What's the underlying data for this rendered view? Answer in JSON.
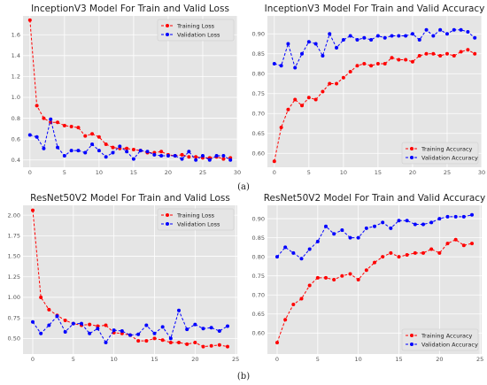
{
  "figure": {
    "captions": [
      "(a)",
      "(b)"
    ]
  },
  "chart_data": [
    {
      "type": "line",
      "title": "InceptionV3 Model For Train and Valid Loss",
      "xlim": [
        -1,
        30
      ],
      "ylim": [
        0.33,
        1.78
      ],
      "xticks": [
        0,
        5,
        10,
        15,
        20,
        25,
        30
      ],
      "yticks": [
        0.4,
        0.6,
        0.8,
        1.0,
        1.2,
        1.4,
        1.6
      ],
      "ydecimals": 1,
      "legend_position": "top-right",
      "x": [
        0,
        1,
        2,
        3,
        4,
        5,
        6,
        7,
        8,
        9,
        10,
        11,
        12,
        13,
        14,
        15,
        16,
        17,
        18,
        19,
        20,
        21,
        22,
        23,
        24,
        25,
        26,
        27,
        28,
        29
      ],
      "series": [
        {
          "name": "Training Loss",
          "color": "#ff0000",
          "style": "dashed",
          "values": [
            1.74,
            0.92,
            0.8,
            0.76,
            0.76,
            0.73,
            0.72,
            0.71,
            0.63,
            0.65,
            0.62,
            0.55,
            0.52,
            0.51,
            0.51,
            0.5,
            0.49,
            0.47,
            0.47,
            0.48,
            0.45,
            0.44,
            0.45,
            0.43,
            0.43,
            0.42,
            0.42,
            0.43,
            0.41,
            0.42
          ]
        },
        {
          "name": "Validation Loss",
          "color": "#0000ff",
          "style": "dashed",
          "values": [
            0.64,
            0.62,
            0.51,
            0.79,
            0.52,
            0.44,
            0.49,
            0.49,
            0.47,
            0.55,
            0.49,
            0.43,
            0.47,
            0.53,
            0.48,
            0.41,
            0.49,
            0.48,
            0.45,
            0.44,
            0.44,
            0.44,
            0.41,
            0.48,
            0.4,
            0.44,
            0.4,
            0.44,
            0.44,
            0.4
          ]
        }
      ]
    },
    {
      "type": "line",
      "title": "InceptionV3 Model For Train and Valid Accuracy",
      "xlim": [
        -1,
        30
      ],
      "ylim": [
        0.565,
        0.945
      ],
      "xticks": [
        0,
        5,
        10,
        15,
        20,
        25,
        30
      ],
      "yticks": [
        0.6,
        0.65,
        0.7,
        0.75,
        0.8,
        0.85,
        0.9
      ],
      "ydecimals": 2,
      "legend_position": "bottom-right",
      "x": [
        0,
        1,
        2,
        3,
        4,
        5,
        6,
        7,
        8,
        9,
        10,
        11,
        12,
        13,
        14,
        15,
        16,
        17,
        18,
        19,
        20,
        21,
        22,
        23,
        24,
        25,
        26,
        27,
        28,
        29
      ],
      "series": [
        {
          "name": "Training Accuracy",
          "color": "#ff0000",
          "style": "dashed",
          "values": [
            0.58,
            0.665,
            0.71,
            0.735,
            0.72,
            0.74,
            0.735,
            0.755,
            0.775,
            0.775,
            0.79,
            0.805,
            0.82,
            0.825,
            0.82,
            0.825,
            0.825,
            0.84,
            0.835,
            0.835,
            0.83,
            0.845,
            0.85,
            0.85,
            0.845,
            0.85,
            0.845,
            0.855,
            0.86,
            0.85
          ]
        },
        {
          "name": "Validation Accuracy",
          "color": "#0000ff",
          "style": "dashed",
          "values": [
            0.825,
            0.82,
            0.875,
            0.815,
            0.85,
            0.88,
            0.875,
            0.845,
            0.9,
            0.865,
            0.885,
            0.895,
            0.885,
            0.89,
            0.885,
            0.895,
            0.89,
            0.895,
            0.895,
            0.895,
            0.9,
            0.885,
            0.91,
            0.895,
            0.91,
            0.9,
            0.91,
            0.91,
            0.905,
            0.89
          ]
        }
      ]
    },
    {
      "type": "line",
      "title": "ResNet50V2 Model For Train and Valid Loss",
      "xlim": [
        -1.2,
        25.2
      ],
      "ylim": [
        0.31,
        2.12
      ],
      "xticks": [
        0,
        5,
        10,
        15,
        20,
        25
      ],
      "yticks": [
        0.5,
        0.75,
        1.0,
        1.25,
        1.5,
        1.75,
        2.0
      ],
      "ydecimals": 2,
      "legend_position": "top-right",
      "x": [
        0,
        1,
        2,
        3,
        4,
        5,
        6,
        7,
        8,
        9,
        10,
        11,
        12,
        13,
        14,
        15,
        16,
        17,
        18,
        19,
        20,
        21,
        22,
        23,
        24
      ],
      "series": [
        {
          "name": "Training Loss",
          "color": "#ff0000",
          "style": "dashed",
          "values": [
            2.06,
            1.0,
            0.85,
            0.78,
            0.72,
            0.68,
            0.66,
            0.67,
            0.65,
            0.66,
            0.57,
            0.56,
            0.54,
            0.47,
            0.47,
            0.5,
            0.48,
            0.45,
            0.45,
            0.43,
            0.45,
            0.4,
            0.41,
            0.42,
            0.4
          ]
        },
        {
          "name": "Validation Loss",
          "color": "#0000ff",
          "style": "dashed",
          "values": [
            0.7,
            0.56,
            0.66,
            0.77,
            0.58,
            0.68,
            0.68,
            0.56,
            0.62,
            0.45,
            0.6,
            0.59,
            0.54,
            0.55,
            0.66,
            0.56,
            0.64,
            0.5,
            0.84,
            0.61,
            0.67,
            0.62,
            0.63,
            0.59,
            0.65
          ]
        }
      ]
    },
    {
      "type": "line",
      "title": "ResNet50V2 Model For Train and Valid Accuracy",
      "xlim": [
        -1.2,
        25.2
      ],
      "ylim": [
        0.545,
        0.935
      ],
      "xticks": [
        0,
        5,
        10,
        15,
        20,
        25
      ],
      "yticks": [
        0.6,
        0.65,
        0.7,
        0.75,
        0.8,
        0.85,
        0.9
      ],
      "ydecimals": 2,
      "legend_position": "bottom-right",
      "x": [
        0,
        1,
        2,
        3,
        4,
        5,
        6,
        7,
        8,
        9,
        10,
        11,
        12,
        13,
        14,
        15,
        16,
        17,
        18,
        19,
        20,
        21,
        22,
        23,
        24
      ],
      "series": [
        {
          "name": "Training Accuracy",
          "color": "#ff0000",
          "style": "dashed",
          "values": [
            0.575,
            0.635,
            0.675,
            0.69,
            0.725,
            0.745,
            0.745,
            0.74,
            0.75,
            0.755,
            0.74,
            0.765,
            0.785,
            0.8,
            0.81,
            0.8,
            0.805,
            0.81,
            0.81,
            0.82,
            0.81,
            0.835,
            0.845,
            0.83,
            0.835
          ]
        },
        {
          "name": "Validation Accuracy",
          "color": "#0000ff",
          "style": "dashed",
          "values": [
            0.8,
            0.825,
            0.81,
            0.795,
            0.82,
            0.84,
            0.88,
            0.86,
            0.87,
            0.85,
            0.85,
            0.875,
            0.88,
            0.89,
            0.875,
            0.895,
            0.895,
            0.885,
            0.885,
            0.89,
            0.9,
            0.905,
            0.905,
            0.905,
            0.91
          ]
        }
      ]
    }
  ]
}
